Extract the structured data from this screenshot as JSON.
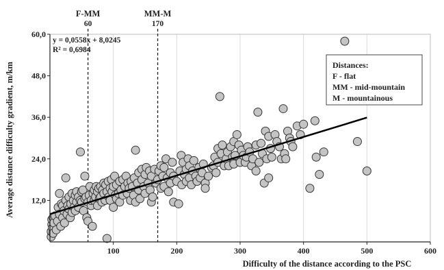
{
  "chart_data": {
    "type": "scatter",
    "xlabel": "Difficulty of the distance according to the PSC",
    "ylabel": "Average distance difficulty gradient, m/km",
    "xlim": [
      0,
      600
    ],
    "ylim": [
      0,
      60
    ],
    "x_ticks": [
      "100",
      "200",
      "300",
      "400",
      "500",
      "600"
    ],
    "y_ticks": [
      "12,0",
      "24,0",
      "36,0",
      "48,0",
      "60,0"
    ],
    "x_tick_values": [
      100,
      200,
      300,
      400,
      500,
      600
    ],
    "y_tick_values": [
      12,
      24,
      36,
      48,
      60
    ],
    "grid": "vertical",
    "trendline": {
      "equation": "y = 0,0558x + 8,0245",
      "r2": "R² = 0,6984",
      "slope": 0.0558,
      "intercept": 8.0245,
      "x_range": [
        0,
        500
      ]
    },
    "reference_lines": [
      {
        "label": "F-MM",
        "value_label": "60",
        "x": 60
      },
      {
        "label": "MM-M",
        "value_label": "170",
        "x": 170
      }
    ],
    "legend": {
      "placement": "top-right",
      "title": "Distances:",
      "entries": [
        "F - flat",
        "MM - mid-mountain",
        "M - mountainous"
      ]
    },
    "colors": {
      "marker_fill": "#c4c4c4",
      "marker_stroke": "#333333",
      "line": "#000000",
      "grid": "#d9d9d9"
    },
    "points": [
      [
        2,
        1.5
      ],
      [
        2,
        3
      ],
      [
        3,
        5
      ],
      [
        3,
        6.5
      ],
      [
        4,
        4
      ],
      [
        5,
        7
      ],
      [
        5,
        2.5
      ],
      [
        6,
        5.5
      ],
      [
        8,
        7.5
      ],
      [
        10,
        3.5
      ],
      [
        12,
        6
      ],
      [
        13,
        10
      ],
      [
        15,
        8
      ],
      [
        15,
        14
      ],
      [
        17,
        4.5
      ],
      [
        18,
        11
      ],
      [
        20,
        7
      ],
      [
        20,
        10.5
      ],
      [
        22,
        9
      ],
      [
        23,
        5.5
      ],
      [
        25,
        12
      ],
      [
        25,
        18.5
      ],
      [
        27,
        8
      ],
      [
        28,
        10.5
      ],
      [
        30,
        9.5
      ],
      [
        30,
        13
      ],
      [
        32,
        7
      ],
      [
        33,
        11
      ],
      [
        35,
        14
      ],
      [
        35,
        8.5
      ],
      [
        37,
        12
      ],
      [
        38,
        10
      ],
      [
        40,
        13.5
      ],
      [
        40,
        9
      ],
      [
        42,
        11.5
      ],
      [
        42,
        14.5
      ],
      [
        45,
        13
      ],
      [
        45,
        10
      ],
      [
        48,
        26
      ],
      [
        48,
        12
      ],
      [
        50,
        14.5
      ],
      [
        50,
        11.5
      ],
      [
        52,
        15
      ],
      [
        53,
        9
      ],
      [
        55,
        19
      ],
      [
        55,
        12.5
      ],
      [
        57,
        13
      ],
      [
        58,
        7
      ],
      [
        60,
        6
      ],
      [
        60,
        11.5
      ],
      [
        62,
        13.5
      ],
      [
        63,
        16
      ],
      [
        65,
        10.5
      ],
      [
        65,
        12
      ],
      [
        67,
        4.5
      ],
      [
        68,
        14
      ],
      [
        70,
        15
      ],
      [
        70,
        12
      ],
      [
        72,
        13
      ],
      [
        73,
        16
      ],
      [
        75,
        10.5
      ],
      [
        75,
        14.5
      ],
      [
        77,
        15.5
      ],
      [
        78,
        12.5
      ],
      [
        80,
        16
      ],
      [
        80,
        13
      ],
      [
        82,
        11.5
      ],
      [
        83,
        15
      ],
      [
        85,
        17
      ],
      [
        85,
        14
      ],
      [
        87,
        12
      ],
      [
        88,
        16.5
      ],
      [
        90,
        1
      ],
      [
        90,
        14.5
      ],
      [
        92,
        17.5
      ],
      [
        93,
        13
      ],
      [
        95,
        15.5
      ],
      [
        95,
        12
      ],
      [
        97,
        18
      ],
      [
        98,
        14.5
      ],
      [
        100,
        16
      ],
      [
        100,
        10
      ],
      [
        102,
        19
      ],
      [
        103,
        13.5
      ],
      [
        105,
        16.5
      ],
      [
        105,
        12.5
      ],
      [
        108,
        14
      ],
      [
        110,
        17.5
      ],
      [
        110,
        11.5
      ],
      [
        112,
        15
      ],
      [
        115,
        18
      ],
      [
        115,
        13.5
      ],
      [
        118,
        16
      ],
      [
        120,
        19
      ],
      [
        122,
        14
      ],
      [
        123,
        17
      ],
      [
        125,
        15.5
      ],
      [
        127,
        12
      ],
      [
        128,
        17.5
      ],
      [
        130,
        16
      ],
      [
        132,
        13.5
      ],
      [
        133,
        18.5
      ],
      [
        135,
        26.5
      ],
      [
        135,
        11.5
      ],
      [
        138,
        17
      ],
      [
        140,
        20
      ],
      [
        140,
        15
      ],
      [
        142,
        12.5
      ],
      [
        145,
        18
      ],
      [
        145,
        21
      ],
      [
        148,
        16
      ],
      [
        150,
        19.5
      ],
      [
        150,
        14
      ],
      [
        152,
        21.5
      ],
      [
        155,
        17
      ],
      [
        157,
        20.5
      ],
      [
        158,
        15
      ],
      [
        160,
        11.5
      ],
      [
        160,
        19
      ],
      [
        162,
        13
      ],
      [
        165,
        21
      ],
      [
        167,
        17
      ],
      [
        170,
        18
      ],
      [
        172,
        20.5
      ],
      [
        175,
        15.5
      ],
      [
        175,
        22
      ],
      [
        178,
        19
      ],
      [
        180,
        16
      ],
      [
        180,
        21.5
      ],
      [
        183,
        24
      ],
      [
        185,
        18.5
      ],
      [
        187,
        14.5
      ],
      [
        190,
        20
      ],
      [
        190,
        17
      ],
      [
        193,
        23
      ],
      [
        195,
        11.5
      ],
      [
        195,
        19
      ],
      [
        200,
        17.5
      ],
      [
        203,
        11
      ],
      [
        205,
        20.5
      ],
      [
        207,
        25
      ],
      [
        208,
        16.5
      ],
      [
        210,
        23
      ],
      [
        212,
        19.5
      ],
      [
        215,
        21
      ],
      [
        215,
        17.5
      ],
      [
        218,
        24
      ],
      [
        220,
        18.5
      ],
      [
        220,
        22
      ],
      [
        223,
        16.5
      ],
      [
        225,
        20.5
      ],
      [
        227,
        23.5
      ],
      [
        230,
        19
      ],
      [
        232,
        17.5
      ],
      [
        235,
        21.5
      ],
      [
        237,
        18.5
      ],
      [
        240,
        20
      ],
      [
        242,
        22.5
      ],
      [
        245,
        17
      ],
      [
        245,
        15.5
      ],
      [
        250,
        19
      ],
      [
        255,
        21.5
      ],
      [
        258,
        22
      ],
      [
        260,
        24.5
      ],
      [
        262,
        20
      ],
      [
        265,
        27
      ],
      [
        265,
        23
      ],
      [
        268,
        42
      ],
      [
        270,
        25.5
      ],
      [
        272,
        28
      ],
      [
        275,
        22
      ],
      [
        278,
        24
      ],
      [
        280,
        26
      ],
      [
        282,
        22
      ],
      [
        285,
        27.5
      ],
      [
        288,
        24.5
      ],
      [
        290,
        29
      ],
      [
        290,
        22.5
      ],
      [
        292,
        25
      ],
      [
        295,
        31
      ],
      [
        298,
        28
      ],
      [
        300,
        23
      ],
      [
        302,
        26.5
      ],
      [
        305,
        25
      ],
      [
        308,
        23
      ],
      [
        310,
        24.5
      ],
      [
        312,
        27.5
      ],
      [
        315,
        26
      ],
      [
        318,
        22
      ],
      [
        320,
        24
      ],
      [
        325,
        28
      ],
      [
        325,
        20.5
      ],
      [
        328,
        37.5
      ],
      [
        330,
        23
      ],
      [
        333,
        28.5
      ],
      [
        335,
        25.5
      ],
      [
        338,
        17
      ],
      [
        340,
        32
      ],
      [
        342,
        24
      ],
      [
        345,
        30.5
      ],
      [
        345,
        18.5
      ],
      [
        348,
        27
      ],
      [
        350,
        24.5
      ],
      [
        355,
        31
      ],
      [
        358,
        29
      ],
      [
        362,
        27.5
      ],
      [
        365,
        24
      ],
      [
        368,
        38.5
      ],
      [
        370,
        25.5
      ],
      [
        372,
        24
      ],
      [
        375,
        32
      ],
      [
        378,
        30
      ],
      [
        380,
        29
      ],
      [
        383,
        27.5
      ],
      [
        390,
        33.5
      ],
      [
        395,
        31
      ],
      [
        400,
        34
      ],
      [
        410,
        15.5
      ],
      [
        418,
        35
      ],
      [
        420,
        24.5
      ],
      [
        425,
        19.5
      ],
      [
        432,
        26
      ],
      [
        465,
        58
      ],
      [
        485,
        29
      ],
      [
        500,
        20.5
      ]
    ]
  }
}
